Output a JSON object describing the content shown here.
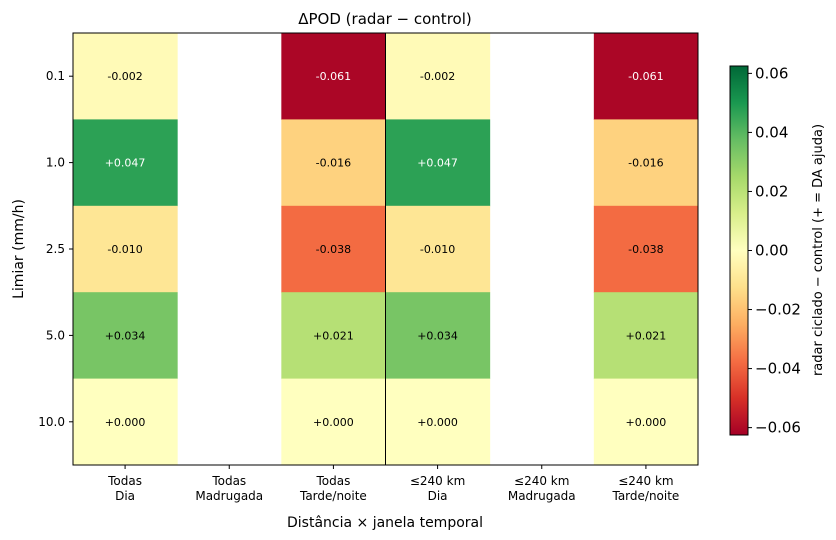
{
  "chart_data": {
    "type": "heatmap",
    "title": "ΔPOD  (radar − control)",
    "xlabel": "Distância × janela temporal",
    "ylabel": "Limiar (mm/h)",
    "x_categories": [
      [
        "Todas",
        "Dia"
      ],
      [
        "Todas",
        "Madrugada"
      ],
      [
        "Todas",
        "Tarde/noite"
      ],
      [
        "≤240 km",
        "Dia"
      ],
      [
        "≤240 km",
        "Madrugada"
      ],
      [
        "≤240 km",
        "Tarde/noite"
      ]
    ],
    "y_categories": [
      "0.1",
      "1.0",
      "2.5",
      "5.0",
      "10.0"
    ],
    "values": [
      [
        -0.002,
        null,
        -0.061,
        -0.002,
        null,
        -0.061
      ],
      [
        0.047,
        null,
        -0.016,
        0.047,
        null,
        -0.016
      ],
      [
        -0.01,
        null,
        -0.038,
        -0.01,
        null,
        -0.038
      ],
      [
        0.034,
        null,
        0.021,
        0.034,
        null,
        0.021
      ],
      [
        0.0,
        null,
        0.0,
        0.0,
        null,
        0.0
      ]
    ],
    "cell_labels": [
      [
        "-0.002",
        "",
        "-0.061",
        "-0.002",
        "",
        "-0.061"
      ],
      [
        "+0.047",
        "",
        "-0.016",
        "+0.047",
        "",
        "-0.016"
      ],
      [
        "-0.010",
        "",
        "-0.038",
        "-0.010",
        "",
        "-0.038"
      ],
      [
        "+0.034",
        "",
        "+0.021",
        "+0.034",
        "",
        "+0.021"
      ],
      [
        "+0.000",
        "",
        "+0.000",
        "+0.000",
        "",
        "+0.000"
      ]
    ],
    "colormap": "RdYlGn",
    "vmin": -0.0625,
    "vmax": 0.0625,
    "colorbar": {
      "label": "radar ciclado − control  (+ = DA ajuda)",
      "ticks": [
        "0.06",
        "0.04",
        "0.02",
        "0.00",
        "−0.02",
        "−0.04",
        "−0.06"
      ],
      "tick_values": [
        0.06,
        0.04,
        0.02,
        0.0,
        -0.02,
        -0.04,
        -0.06
      ]
    },
    "separator_after_column": 2,
    "grid": false
  }
}
